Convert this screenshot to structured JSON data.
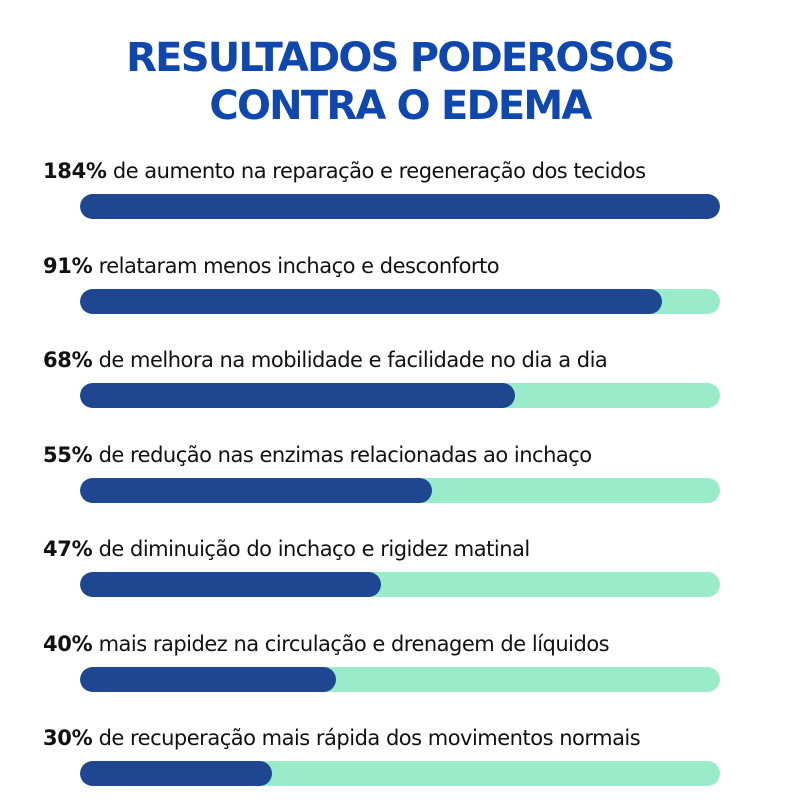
{
  "title_lines": [
    "RESULTADOS PODEROSOS",
    "CONTRA O EDEMA"
  ],
  "colors": {
    "title": "#0f47ad",
    "bar_fill": "#1f4690",
    "bar_track": "#99ebca",
    "text": "#111111"
  },
  "chart_data": {
    "type": "bar",
    "orientation": "horizontal",
    "max": 100,
    "items": [
      {
        "value_label": "184%",
        "text": "de aumento na reparação e regeneração dos tecidos",
        "value": 184
      },
      {
        "value_label": "91%",
        "text": "relataram menos inchaço e desconforto",
        "value": 91
      },
      {
        "value_label": "68%",
        "text": "de melhora na mobilidade e facilidade no dia a dia",
        "value": 68
      },
      {
        "value_label": "55%",
        "text": "de redução nas enzimas relacionadas ao inchaço",
        "value": 55
      },
      {
        "value_label": "47%",
        "text": "de diminuição do inchaço e rigidez matinal",
        "value": 47
      },
      {
        "value_label": "40%",
        "text": "mais rapidez na circulação e drenagem de líquidos",
        "value": 40
      },
      {
        "value_label": "30%",
        "text": "de recuperação mais rápida dos movimentos normais",
        "value": 30
      }
    ]
  }
}
